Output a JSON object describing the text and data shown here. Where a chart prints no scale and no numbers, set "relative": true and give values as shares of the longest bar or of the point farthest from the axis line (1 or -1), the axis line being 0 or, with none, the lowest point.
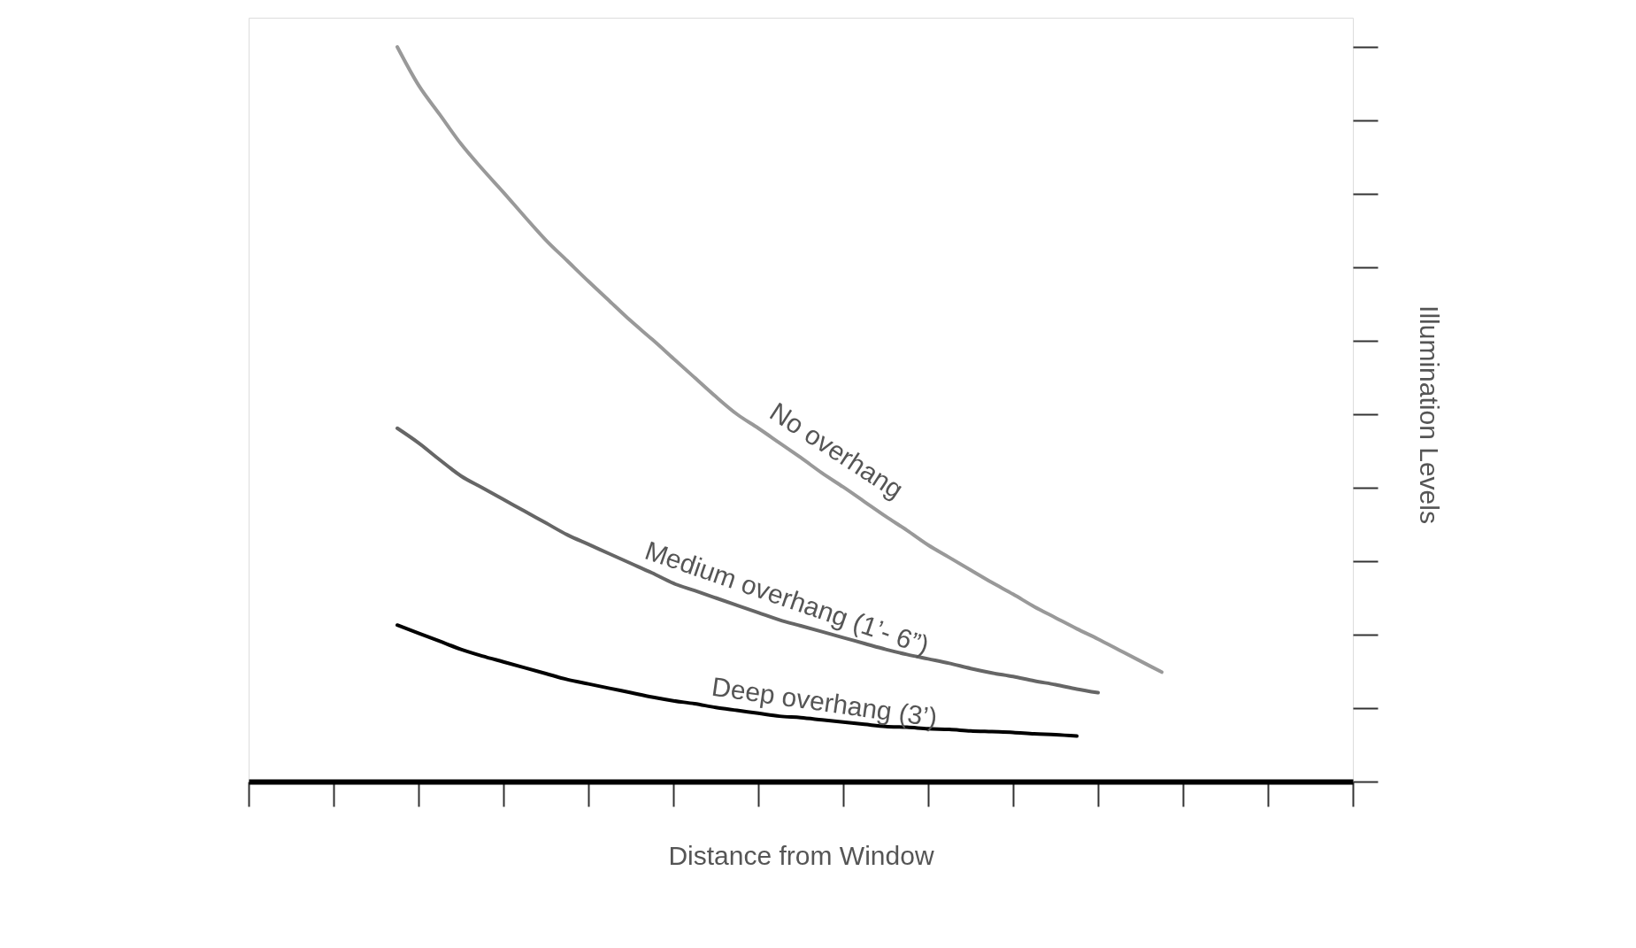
{
  "chart_data": {
    "type": "line",
    "relative": true,
    "xlabel": "Distance from Window",
    "ylabel": "Illumination Levels",
    "tick_labels": false,
    "categories": [
      null,
      null,
      null,
      null,
      null,
      null,
      null,
      null,
      null,
      null,
      null,
      null,
      null,
      null,
      null,
      null,
      null,
      null,
      null,
      null,
      null,
      null,
      null,
      null,
      null,
      null,
      null,
      null,
      null,
      null,
      null,
      null,
      null,
      null,
      null,
      null,
      null,
      null,
      null,
      null,
      null,
      null,
      null,
      null,
      null,
      null,
      null,
      null,
      null,
      null,
      null,
      null,
      null
    ],
    "series": [
      {
        "name": "No overhang",
        "color": "#999999",
        "values": [
          null,
          null,
          null,
          null,
          null,
          null,
          null,
          1,
          0.948,
          0.908,
          0.868,
          0.834,
          0.802,
          0.769,
          0.737,
          0.709,
          0.681,
          0.654,
          0.627,
          0.602,
          0.576,
          0.55,
          0.524,
          0.5,
          0.481,
          0.461,
          0.441,
          0.42,
          0.401,
          0.381,
          0.361,
          0.342,
          0.322,
          0.305,
          0.288,
          0.271,
          0.255,
          0.238,
          0.223,
          0.208,
          0.194,
          0.179,
          0.164,
          0.149,
          null,
          null,
          null,
          null,
          null,
          null,
          null,
          null,
          null
        ]
      },
      {
        "name": "Medium overhang (1’- 6”)",
        "color": "#666666",
        "values": [
          null,
          null,
          null,
          null,
          null,
          null,
          null,
          0.481,
          0.461,
          0.438,
          0.416,
          0.4,
          0.384,
          0.368,
          0.352,
          0.336,
          0.323,
          0.31,
          0.297,
          0.284,
          0.27,
          0.26,
          0.25,
          0.24,
          0.23,
          0.22,
          0.212,
          0.204,
          0.196,
          0.188,
          0.18,
          0.173,
          0.167,
          0.161,
          0.154,
          0.148,
          0.143,
          0.137,
          0.132,
          0.126,
          0.121,
          null,
          null,
          null,
          null,
          null,
          null,
          null,
          null,
          null,
          null,
          null,
          null
        ]
      },
      {
        "name": "Deep overhang (3’)",
        "color": "#000000",
        "values": [
          null,
          null,
          null,
          null,
          null,
          null,
          null,
          0.213,
          0.202,
          0.191,
          0.18,
          0.171,
          0.163,
          0.155,
          0.147,
          0.139,
          0.133,
          0.127,
          0.121,
          0.115,
          0.11,
          0.106,
          0.101,
          0.097,
          0.093,
          0.089,
          0.087,
          0.084,
          0.081,
          0.078,
          0.075,
          0.074,
          0.072,
          0.071,
          0.069,
          0.068,
          0.067,
          0.065,
          0.064,
          0.062,
          null,
          null,
          null,
          null,
          null,
          null,
          null,
          null,
          null,
          null,
          null,
          null,
          null
        ]
      }
    ]
  }
}
